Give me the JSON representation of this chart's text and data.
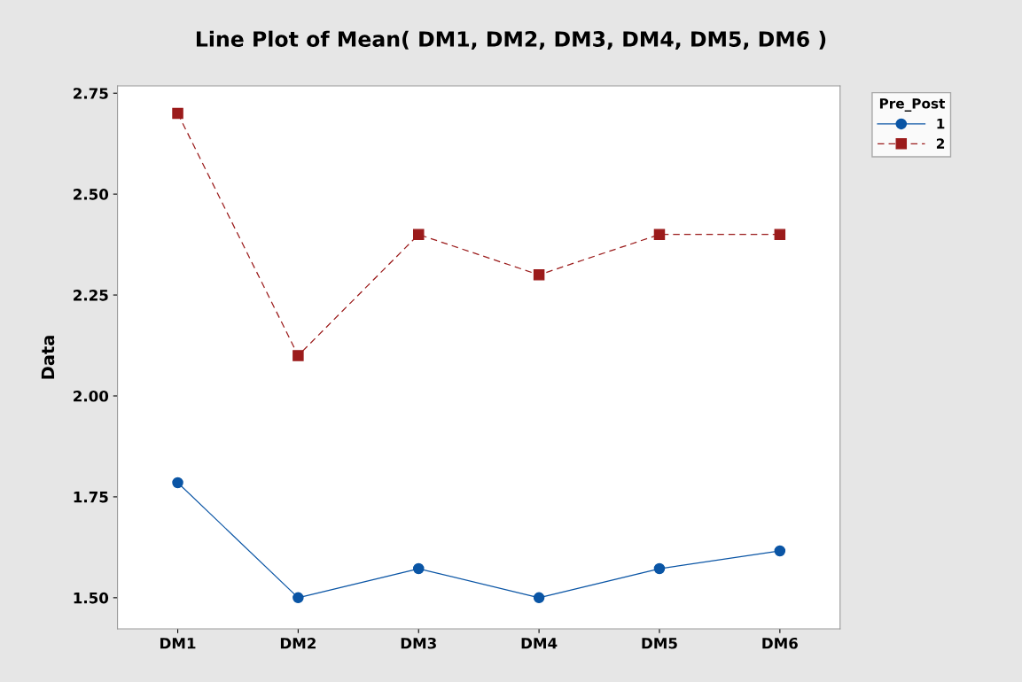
{
  "chart_data": {
    "type": "line",
    "title": "Line Plot of Mean( DM1, DM2, DM3, DM4, DM5, DM6 )",
    "ylabel": "Data",
    "categories": [
      "DM1",
      "DM2",
      "DM3",
      "DM4",
      "DM5",
      "DM6"
    ],
    "series": [
      {
        "name": "1",
        "color": "#0a55a5",
        "marker": "circle",
        "line_style": "solid",
        "values": [
          1.785,
          1.5,
          1.572,
          1.5,
          1.572,
          1.616
        ]
      },
      {
        "name": "2",
        "color": "#9b1b1b",
        "marker": "square",
        "line_style": "dashed",
        "values": [
          2.7,
          2.1,
          2.4,
          2.3,
          2.4,
          2.4
        ]
      }
    ],
    "ylim": [
      1.423,
      2.768
    ],
    "yticks": [
      {
        "value": 1.5,
        "label": "1.50"
      },
      {
        "value": 1.75,
        "label": "1.75"
      },
      {
        "value": 2.0,
        "label": "2.00"
      },
      {
        "value": 2.25,
        "label": "2.25"
      },
      {
        "value": 2.5,
        "label": "2.50"
      },
      {
        "value": 2.75,
        "label": "2.75"
      }
    ],
    "legend_title": "Pre_Post",
    "legend": "top right",
    "grid": false
  }
}
